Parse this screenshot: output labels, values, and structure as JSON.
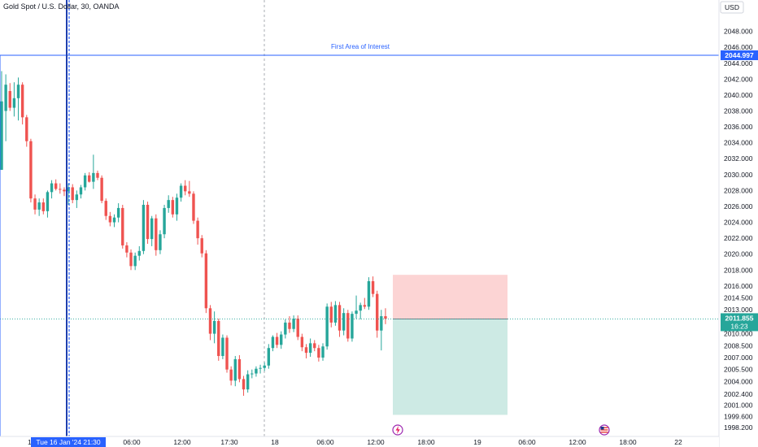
{
  "header": {
    "title": "Gold Spot / U.S. Dollar, 30, OANDA",
    "currency": "USD"
  },
  "colors": {
    "up": "#26a69a",
    "down": "#ef5350",
    "accent": "#2962ff",
    "stop_zone": "#fcd4d4",
    "target_zone": "#cdeae4"
  },
  "chart_data": {
    "type": "candlestick",
    "ylim": [
      1997.6,
      2049.9
    ],
    "price_ticks": [
      "2048.000",
      "2046.000",
      "2044.000",
      "2042.000",
      "2040.000",
      "2038.000",
      "2036.000",
      "2034.000",
      "2032.000",
      "2030.000",
      "2028.000",
      "2026.000",
      "2024.000",
      "2022.000",
      "2020.000",
      "2018.000",
      "2016.000",
      "2014.500",
      "2013.000",
      "2010.000",
      "2008.500",
      "2007.000",
      "2005.500",
      "2004.000",
      "2002.400",
      "2001.000",
      "1999.600",
      "1998.200"
    ],
    "time_ticks": [
      "06:00",
      "12:00",
      "17:30",
      "18",
      "06:00",
      "12:00",
      "18:00",
      "19",
      "06:00",
      "12:00",
      "18:00",
      "22"
    ],
    "candle_index_range": [
      0,
      80
    ],
    "candles": [
      {
        "o": 2030.6,
        "h": 2043.0,
        "l": 2030.6,
        "c": 2039.2
      },
      {
        "o": 2038.0,
        "h": 2042.6,
        "l": 2034.2,
        "c": 2041.3
      },
      {
        "o": 2040.5,
        "h": 2041.5,
        "l": 2038.0,
        "c": 2038.4
      },
      {
        "o": 2038.4,
        "h": 2041.6,
        "l": 2037.3,
        "c": 2039.6
      },
      {
        "o": 2039.6,
        "h": 2042.2,
        "l": 2036.8,
        "c": 2041.3
      },
      {
        "o": 2041.3,
        "h": 2041.6,
        "l": 2036.3,
        "c": 2037.2
      },
      {
        "o": 2037.2,
        "h": 2037.5,
        "l": 2033.5,
        "c": 2034.2
      },
      {
        "o": 2034.2,
        "h": 2034.5,
        "l": 2026.5,
        "c": 2027.0
      },
      {
        "o": 2027.0,
        "h": 2027.5,
        "l": 2025.0,
        "c": 2025.6
      },
      {
        "o": 2025.6,
        "h": 2027.0,
        "l": 2024.8,
        "c": 2026.5
      },
      {
        "o": 2026.5,
        "h": 2027.0,
        "l": 2025.0,
        "c": 2025.4
      },
      {
        "o": 2025.4,
        "h": 2028.0,
        "l": 2024.6,
        "c": 2027.8
      },
      {
        "o": 2027.8,
        "h": 2029.3,
        "l": 2027.0,
        "c": 2028.9
      },
      {
        "o": 2028.9,
        "h": 2029.4,
        "l": 2028.0,
        "c": 2028.2
      },
      {
        "o": 2028.2,
        "h": 2028.9,
        "l": 2027.6,
        "c": 2028.1
      },
      {
        "o": 2028.1,
        "h": 2028.4,
        "l": 2027.3,
        "c": 2027.9
      },
      {
        "o": 2027.9,
        "h": 2028.9,
        "l": 2026.2,
        "c": 2028.4
      },
      {
        "o": 2028.4,
        "h": 2028.8,
        "l": 2026.4,
        "c": 2026.8
      },
      {
        "o": 2026.8,
        "h": 2028.0,
        "l": 2025.8,
        "c": 2027.5
      },
      {
        "o": 2027.5,
        "h": 2028.7,
        "l": 2027.0,
        "c": 2028.4
      },
      {
        "o": 2028.4,
        "h": 2030.2,
        "l": 2028.0,
        "c": 2029.9
      },
      {
        "o": 2029.9,
        "h": 2030.3,
        "l": 2029.0,
        "c": 2029.1
      },
      {
        "o": 2029.1,
        "h": 2032.5,
        "l": 2028.2,
        "c": 2030.2
      },
      {
        "o": 2030.2,
        "h": 2030.5,
        "l": 2029.3,
        "c": 2029.6
      },
      {
        "o": 2029.6,
        "h": 2029.9,
        "l": 2026.4,
        "c": 2026.7
      },
      {
        "o": 2026.7,
        "h": 2027.0,
        "l": 2024.3,
        "c": 2024.8
      },
      {
        "o": 2024.8,
        "h": 2025.3,
        "l": 2023.5,
        "c": 2024.0
      },
      {
        "o": 2024.0,
        "h": 2025.0,
        "l": 2023.4,
        "c": 2024.6
      },
      {
        "o": 2024.6,
        "h": 2026.4,
        "l": 2024.0,
        "c": 2025.8
      },
      {
        "o": 2025.8,
        "h": 2026.2,
        "l": 2020.7,
        "c": 2021.1
      },
      {
        "o": 2021.1,
        "h": 2021.5,
        "l": 2019.6,
        "c": 2020.2
      },
      {
        "o": 2020.2,
        "h": 2020.6,
        "l": 2018.0,
        "c": 2018.5
      },
      {
        "o": 2018.5,
        "h": 2020.2,
        "l": 2018.0,
        "c": 2019.8
      },
      {
        "o": 2019.8,
        "h": 2021.0,
        "l": 2019.2,
        "c": 2020.4
      },
      {
        "o": 2020.4,
        "h": 2026.8,
        "l": 2020.0,
        "c": 2026.2
      },
      {
        "o": 2026.2,
        "h": 2026.6,
        "l": 2021.3,
        "c": 2021.9
      },
      {
        "o": 2021.9,
        "h": 2024.8,
        "l": 2021.0,
        "c": 2024.5
      },
      {
        "o": 2024.5,
        "h": 2025.0,
        "l": 2019.8,
        "c": 2020.5
      },
      {
        "o": 2020.5,
        "h": 2023.0,
        "l": 2020.0,
        "c": 2022.5
      },
      {
        "o": 2022.5,
        "h": 2026.2,
        "l": 2022.0,
        "c": 2025.8
      },
      {
        "o": 2025.8,
        "h": 2027.4,
        "l": 2025.2,
        "c": 2026.8
      },
      {
        "o": 2026.8,
        "h": 2027.2,
        "l": 2024.6,
        "c": 2025.0
      },
      {
        "o": 2025.0,
        "h": 2027.6,
        "l": 2024.2,
        "c": 2027.1
      },
      {
        "o": 2027.1,
        "h": 2028.9,
        "l": 2026.6,
        "c": 2028.6
      },
      {
        "o": 2028.6,
        "h": 2029.3,
        "l": 2027.4,
        "c": 2027.9
      },
      {
        "o": 2027.9,
        "h": 2029.2,
        "l": 2027.2,
        "c": 2027.6
      },
      {
        "o": 2027.6,
        "h": 2027.9,
        "l": 2023.8,
        "c": 2024.2
      },
      {
        "o": 2024.2,
        "h": 2024.6,
        "l": 2021.2,
        "c": 2022.0
      },
      {
        "o": 2022.0,
        "h": 2022.4,
        "l": 2019.6,
        "c": 2020.1
      },
      {
        "o": 2020.1,
        "h": 2020.5,
        "l": 2012.6,
        "c": 2013.2
      },
      {
        "o": 2013.2,
        "h": 2013.6,
        "l": 2009.2,
        "c": 2010.0
      },
      {
        "o": 2010.0,
        "h": 2012.8,
        "l": 2008.8,
        "c": 2011.6
      },
      {
        "o": 2011.6,
        "h": 2011.9,
        "l": 2006.6,
        "c": 2007.2
      },
      {
        "o": 2007.2,
        "h": 2009.9,
        "l": 2006.8,
        "c": 2009.5
      },
      {
        "o": 2009.5,
        "h": 2009.8,
        "l": 2005.1,
        "c": 2005.5
      },
      {
        "o": 2005.5,
        "h": 2005.9,
        "l": 2003.5,
        "c": 2004.1
      },
      {
        "o": 2004.1,
        "h": 2007.2,
        "l": 2003.4,
        "c": 2006.8
      },
      {
        "o": 2006.8,
        "h": 2007.3,
        "l": 2003.9,
        "c": 2004.3
      },
      {
        "o": 2004.3,
        "h": 2004.7,
        "l": 2002.2,
        "c": 2003.0
      },
      {
        "o": 2003.0,
        "h": 2005.4,
        "l": 2002.6,
        "c": 2004.9
      },
      {
        "o": 2004.9,
        "h": 2005.5,
        "l": 2004.4,
        "c": 2005.0
      },
      {
        "o": 2005.0,
        "h": 2005.9,
        "l": 2004.6,
        "c": 2005.6
      },
      {
        "o": 2005.6,
        "h": 2006.1,
        "l": 2005.0,
        "c": 2005.7
      },
      {
        "o": 2005.7,
        "h": 2006.4,
        "l": 2005.3,
        "c": 2006.0
      },
      {
        "o": 2006.0,
        "h": 2008.7,
        "l": 2005.6,
        "c": 2008.2
      },
      {
        "o": 2008.2,
        "h": 2009.8,
        "l": 2007.8,
        "c": 2009.6
      },
      {
        "o": 2009.6,
        "h": 2010.1,
        "l": 2008.2,
        "c": 2008.6
      },
      {
        "o": 2008.6,
        "h": 2010.3,
        "l": 2008.1,
        "c": 2009.9
      },
      {
        "o": 2009.9,
        "h": 2011.8,
        "l": 2009.4,
        "c": 2011.4
      },
      {
        "o": 2011.4,
        "h": 2012.2,
        "l": 2010.1,
        "c": 2010.6
      },
      {
        "o": 2010.6,
        "h": 2012.3,
        "l": 2010.2,
        "c": 2011.9
      },
      {
        "o": 2011.9,
        "h": 2012.3,
        "l": 2009.2,
        "c": 2009.6
      },
      {
        "o": 2009.6,
        "h": 2010.0,
        "l": 2007.8,
        "c": 2008.3
      },
      {
        "o": 2008.3,
        "h": 2008.7,
        "l": 2006.9,
        "c": 2007.6
      },
      {
        "o": 2007.6,
        "h": 2009.4,
        "l": 2007.1,
        "c": 2008.8
      },
      {
        "o": 2008.8,
        "h": 2009.2,
        "l": 2007.8,
        "c": 2008.2
      },
      {
        "o": 2008.2,
        "h": 2008.6,
        "l": 2006.5,
        "c": 2007.0
      },
      {
        "o": 2007.0,
        "h": 2008.8,
        "l": 2006.6,
        "c": 2008.4
      },
      {
        "o": 2008.4,
        "h": 2013.8,
        "l": 2008.0,
        "c": 2013.4
      },
      {
        "o": 2013.4,
        "h": 2014.0,
        "l": 2010.8,
        "c": 2011.4
      },
      {
        "o": 2011.4,
        "h": 2014.1,
        "l": 2011.0,
        "c": 2013.6
      },
      {
        "o": 2013.6,
        "h": 2014.0,
        "l": 2009.6,
        "c": 2010.4
      },
      {
        "o": 2010.4,
        "h": 2013.2,
        "l": 2009.8,
        "c": 2012.6
      },
      {
        "o": 2012.6,
        "h": 2013.0,
        "l": 2009.0,
        "c": 2009.4
      },
      {
        "o": 2009.4,
        "h": 2012.8,
        "l": 2009.0,
        "c": 2012.5
      },
      {
        "o": 2012.5,
        "h": 2014.8,
        "l": 2011.9,
        "c": 2012.9
      },
      {
        "o": 2012.9,
        "h": 2013.9,
        "l": 2011.8,
        "c": 2013.6
      },
      {
        "o": 2013.6,
        "h": 2014.5,
        "l": 2013.1,
        "c": 2013.4
      },
      {
        "o": 2013.4,
        "h": 2017.1,
        "l": 2013.0,
        "c": 2016.6
      },
      {
        "o": 2016.6,
        "h": 2017.2,
        "l": 2014.6,
        "c": 2015.0
      },
      {
        "o": 2015.0,
        "h": 2015.4,
        "l": 2009.5,
        "c": 2010.4
      },
      {
        "o": 2010.4,
        "h": 2013.0,
        "l": 2007.9,
        "c": 2012.2
      },
      {
        "o": 2012.2,
        "h": 2013.2,
        "l": 2011.2,
        "c": 2011.9
      }
    ],
    "annotation": {
      "label": "First Area of Interest",
      "price": 2044.997
    },
    "horizontal_price_label": "2044.997",
    "current_price": 2011.855,
    "current_price_label": "2011.855",
    "countdown": "16:23",
    "position_tool": {
      "entry": 2011.855,
      "stop": 2017.4,
      "target": 1999.8
    },
    "crosshair_date": "Tue 16 Jan '24",
    "crosshair_time": "21:30",
    "left_edge_label": "1"
  }
}
